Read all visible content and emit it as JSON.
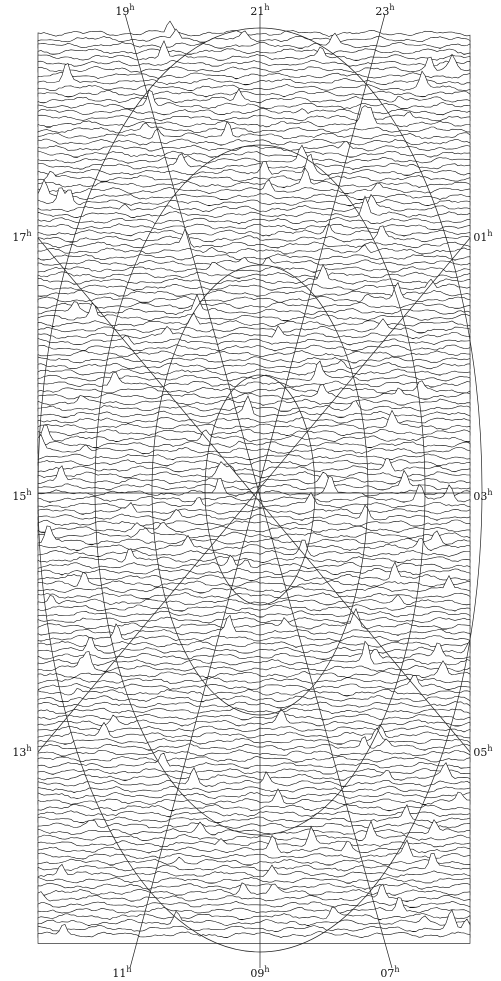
{
  "labels": {
    "top": [
      {
        "hour": "19",
        "unit": "h"
      },
      {
        "hour": "21",
        "unit": "h"
      },
      {
        "hour": "23",
        "unit": "h"
      }
    ],
    "left": [
      {
        "hour": "17",
        "unit": "h"
      },
      {
        "hour": "15",
        "unit": "h"
      },
      {
        "hour": "13",
        "unit": "h"
      }
    ],
    "right": [
      {
        "hour": "01",
        "unit": "h"
      },
      {
        "hour": "03",
        "unit": "h"
      },
      {
        "hour": "05",
        "unit": "h"
      }
    ],
    "bottom": [
      {
        "hour": "11",
        "unit": "h"
      },
      {
        "hour": "09",
        "unit": "h"
      },
      {
        "hour": "07",
        "unit": "h"
      }
    ]
  }
}
